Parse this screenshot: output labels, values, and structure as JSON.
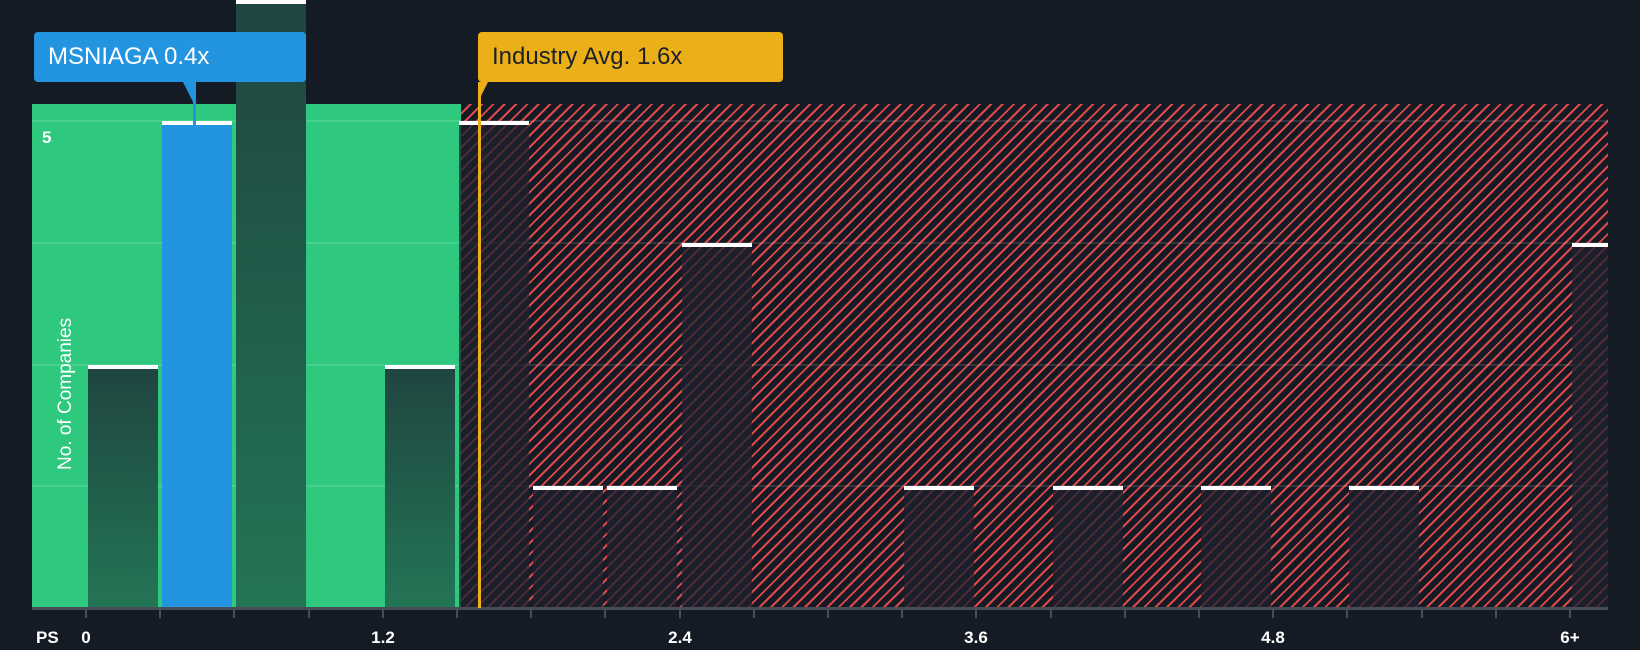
{
  "chart_data": {
    "type": "bar",
    "title": "",
    "xlabel": "PS",
    "ylabel": "No. of Companies",
    "bin_width": 0.3,
    "categories": [
      "0-0.3",
      "0.3-0.6",
      "0.6-0.9",
      "0.9-1.2",
      "1.2-1.5",
      "1.5-1.8",
      "1.8-2.1",
      "2.1-2.4",
      "2.4-2.7",
      "2.7-3.0",
      "3.0-3.3",
      "3.3-3.6",
      "3.6-3.9",
      "3.9-4.2",
      "4.2-4.5",
      "4.5-4.8",
      "4.8-5.1",
      "5.1-5.4",
      "5.4-5.7",
      "5.7-6.0",
      "6+"
    ],
    "values": [
      2,
      4,
      5,
      0,
      2,
      4,
      1,
      1,
      3,
      0,
      0,
      1,
      0,
      1,
      0,
      1,
      0,
      1,
      0,
      0,
      3
    ],
    "highlight_bin": "0.3-0.6",
    "x_ticks": [
      "0",
      "1.2",
      "2.4",
      "3.6",
      "4.8",
      "6+"
    ],
    "y_ticks": [
      "5"
    ],
    "ylim": [
      0,
      5.2
    ],
    "grid": true,
    "annotations": [
      {
        "label": "MSNIAGA 0.4x",
        "x": 0.4,
        "color": "#2394e0"
      },
      {
        "label": "Industry Avg. 1.6x",
        "x": 1.6,
        "color": "#ebb018"
      }
    ],
    "zones": [
      {
        "name": "below-average",
        "from": 0,
        "to": 1.6,
        "color": "#2ec97f"
      },
      {
        "name": "above-average",
        "from": 1.6,
        "to": "6+",
        "color": "#e0484c"
      }
    ]
  },
  "labels": {
    "company_callout": "MSNIAGA 0.4x",
    "industry_callout": "Industry Avg. 1.6x",
    "y_axis_title": "No. of Companies",
    "x_axis_title": "PS",
    "y_tick_5": "5",
    "x_ticks": [
      "0",
      "1.2",
      "2.4",
      "3.6",
      "4.8",
      "6+"
    ]
  }
}
